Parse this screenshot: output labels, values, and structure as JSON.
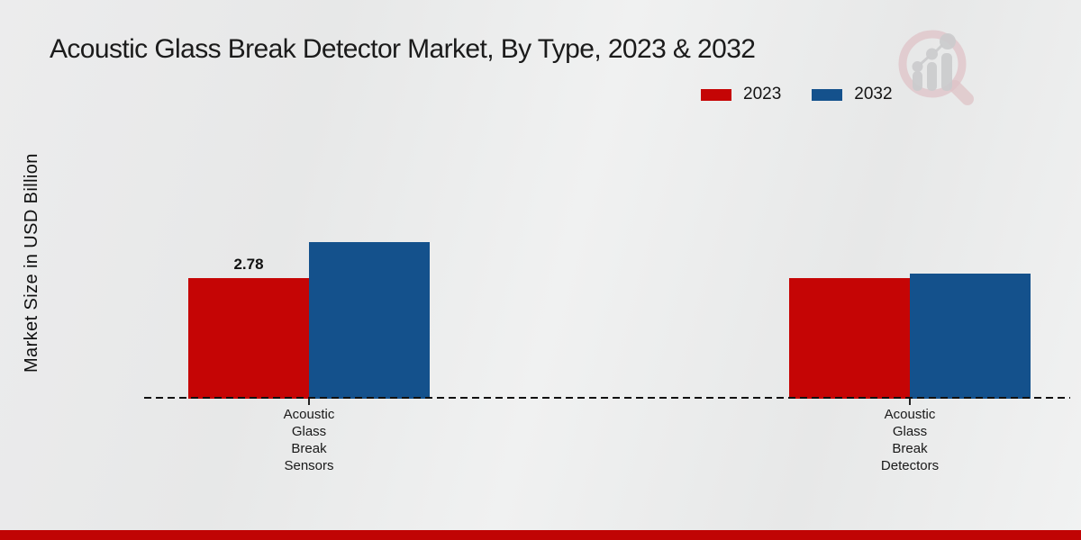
{
  "title": "Acoustic Glass Break Detector Market, By Type, 2023 & 2032",
  "y_axis_label": "Market Size in USD Billion",
  "legend": {
    "items": [
      {
        "label": "2023",
        "color": "#c50505"
      },
      {
        "label": "2032",
        "color": "#14518c"
      }
    ]
  },
  "chart_data": {
    "type": "bar",
    "title": "Acoustic Glass Break Detector Market, By Type, 2023 & 2032",
    "xlabel": "",
    "ylabel": "Market Size in USD Billion",
    "categories": [
      "Acoustic Glass Break Sensors",
      "Acoustic Glass Break Detectors"
    ],
    "series": [
      {
        "name": "2023",
        "color": "#c50505",
        "values": [
          2.78,
          2.78
        ],
        "data_labels": [
          "2.78",
          ""
        ]
      },
      {
        "name": "2032",
        "color": "#14518c",
        "values": [
          3.61,
          2.88
        ],
        "data_labels": [
          "",
          ""
        ]
      }
    ],
    "ylim": [
      0,
      4
    ],
    "grid": false,
    "legend_position": "top-right",
    "baseline_style": "dashed"
  },
  "branding": {
    "watermark_icon": "magnifier-bar-chart-logo",
    "footer_bar_color": "#c00404"
  }
}
